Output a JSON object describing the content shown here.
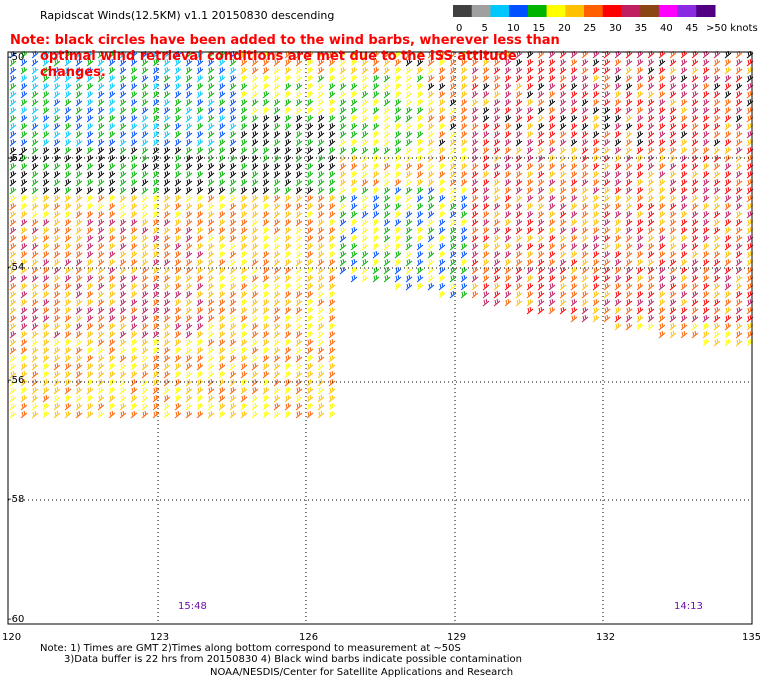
{
  "header": {
    "title": "Rapidscat Winds(12.5KM) v1.1 20150830 descending"
  },
  "note": {
    "line1": "Note: black circles have been added to the wind barbs, wherever less than",
    "line2": "optimal wind retrieval conditions are met due to the ISS attitude changes."
  },
  "colorbar": {
    "labels": [
      "0",
      "5",
      "10",
      "15",
      "20",
      "25",
      "30",
      "35",
      "40",
      "45",
      ">50 knots"
    ],
    "colors": [
      "#404040",
      "#a0a0a0",
      "#00c8ff",
      "#0050ff",
      "#00b400",
      "#ffff00",
      "#ffc000",
      "#ff6000",
      "#ff0000",
      "#c02060",
      "#8b4513",
      "#ff00ff",
      "#8a2be2",
      "#500080"
    ]
  },
  "map": {
    "lon_range": [
      120,
      135
    ],
    "lat_range": [
      -60,
      -50
    ],
    "lon_ticks": [
      "120",
      "123",
      "126",
      "129",
      "132",
      "135"
    ],
    "lat_ticks": [
      "-50",
      "-52",
      "-54",
      "-56",
      "-58",
      "-60"
    ],
    "grid": true,
    "pass_times": [
      "15:48",
      "14:13"
    ]
  },
  "footer": {
    "line1": "Note: 1) Times are GMT 2)Times along bottom correspond to measurement at ~50S",
    "line2": "3)Data buffer is 22 hrs from 20150830 4) Black wind barbs indicate possible contamination",
    "line3": "NOAA/NESDIS/Center for Satellite Applications and Research"
  }
}
